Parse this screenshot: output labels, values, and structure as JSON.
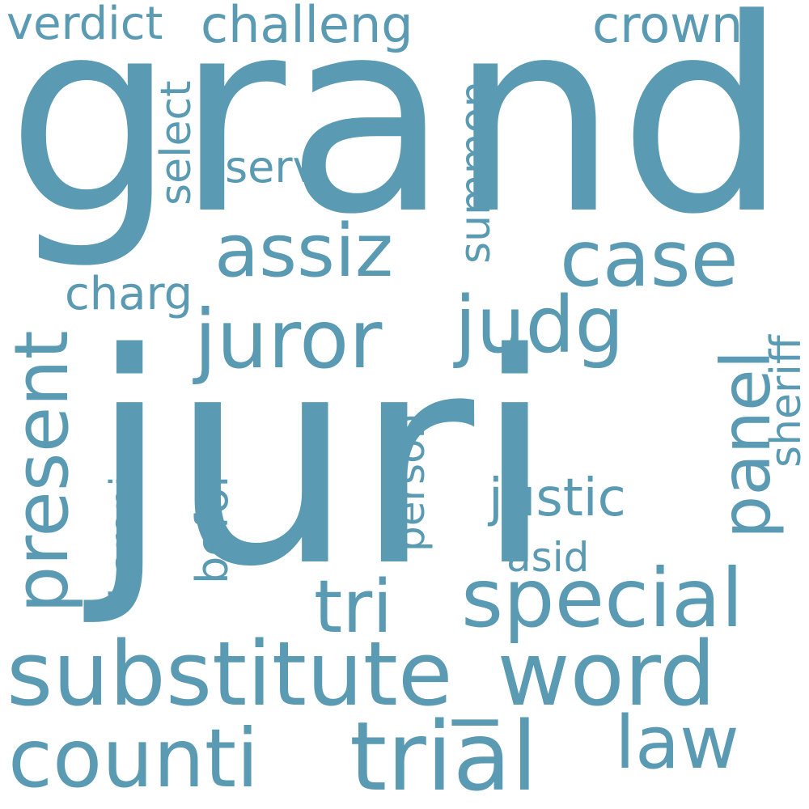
{
  "color": "#5a9ab2",
  "background": "#ffffff",
  "words": [
    {
      "text": "juri",
      "orientation": "horizontal"
    },
    {
      "text": "grand",
      "orientation": "horizontal"
    },
    {
      "text": "substitute_word",
      "orientation": "horizontal"
    },
    {
      "text": "counti",
      "orientation": "horizontal"
    },
    {
      "text": "trial",
      "orientation": "horizontal"
    },
    {
      "text": "juror",
      "orientation": "horizontal"
    },
    {
      "text": "assiz",
      "orientation": "horizontal"
    },
    {
      "text": "case",
      "orientation": "horizontal"
    },
    {
      "text": "judg",
      "orientation": "horizontal"
    },
    {
      "text": "special",
      "orientation": "horizontal"
    },
    {
      "text": "tri",
      "orientation": "horizontal"
    },
    {
      "text": "law",
      "orientation": "horizontal"
    },
    {
      "text": "present",
      "orientation": "vertical"
    },
    {
      "text": "panel",
      "orientation": "vertical"
    },
    {
      "text": "verdict",
      "orientation": "horizontal"
    },
    {
      "text": "challeng",
      "orientation": "horizontal"
    },
    {
      "text": "crown",
      "orientation": "horizontal"
    },
    {
      "text": "justic",
      "orientation": "horizontal"
    },
    {
      "text": "select",
      "orientation": "vertical"
    },
    {
      "text": "summon",
      "orientation": "vertical"
    },
    {
      "text": "sheriff",
      "orientation": "vertical"
    },
    {
      "text": "befor",
      "orientation": "vertical"
    },
    {
      "text": "person",
      "orientation": "vertical"
    },
    {
      "text": "baroni",
      "orientation": "vertical"
    },
    {
      "text": "charg",
      "orientation": "horizontal"
    },
    {
      "text": "serv",
      "orientation": "horizontal"
    },
    {
      "text": "asid",
      "orientation": "horizontal"
    }
  ]
}
